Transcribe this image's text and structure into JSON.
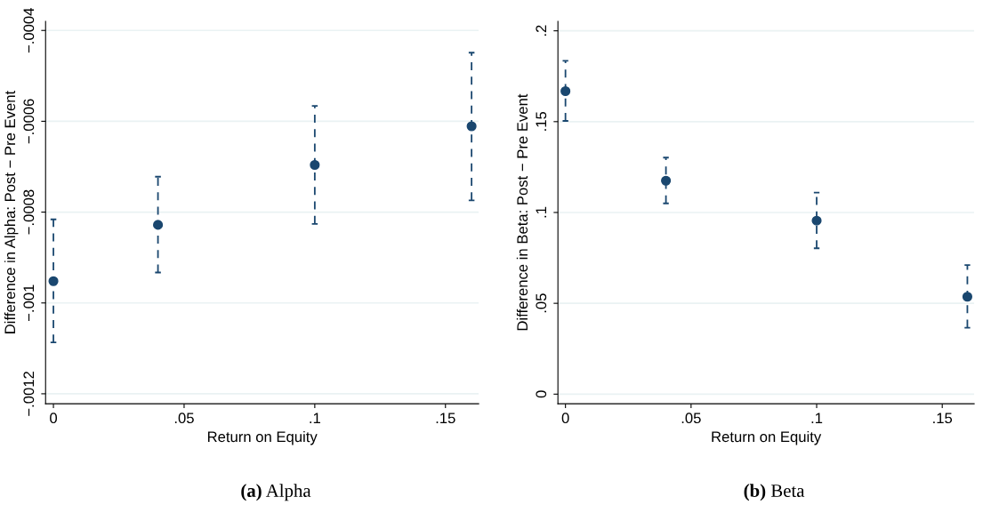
{
  "chart_data": [
    {
      "type": "scatter",
      "title": "(a) Alpha",
      "xlabel": "Return on Equity",
      "ylabel": "Difference in Alpha: Post − Pre Event",
      "x": [
        0,
        0.04,
        0.1,
        0.16
      ],
      "series": [
        {
          "color": "#1a476f",
          "values": [
            -0.000952,
            -0.000828,
            -0.000696,
            -0.000611
          ],
          "errors": [
            [
              -0.001087,
              -0.000816
            ],
            [
              -0.000933,
              -0.000722
            ],
            [
              -0.000826,
              -0.000566
            ],
            [
              -0.000774,
              -0.000449
            ]
          ]
        }
      ],
      "xlim": [
        -0.003,
        0.1627
      ],
      "xticks": [
        {
          "value": 0,
          "label": "0"
        },
        {
          "value": 0.05,
          "label": ".05"
        },
        {
          "value": 0.1,
          "label": ".1"
        },
        {
          "value": 0.15,
          "label": ".15"
        }
      ],
      "ylim": [
        -0.001222,
        -0.00038
      ],
      "yticks": [
        {
          "value": -0.0012,
          "label": "−.0012"
        },
        {
          "value": -0.001,
          "label": "−.001"
        },
        {
          "value": -0.0008,
          "label": "−.0008"
        },
        {
          "value": -0.0006,
          "label": "−.0006"
        },
        {
          "value": -0.0004,
          "label": "−.0004"
        }
      ],
      "grid": "y",
      "marker": "circle",
      "line_style": "dashed"
    },
    {
      "type": "scatter",
      "title": "(b) Beta",
      "xlabel": "Return on Equity",
      "ylabel": "Difference in Beta: Post − Pre Event",
      "x": [
        0,
        0.04,
        0.1,
        0.16
      ],
      "series": [
        {
          "color": "#1a476f",
          "values": [
            0.1668,
            0.1175,
            0.0955,
            0.0536
          ],
          "errors": [
            [
              0.1504,
              0.1835
            ],
            [
              0.105,
              0.1302
            ],
            [
              0.0803,
              0.1109
            ],
            [
              0.0366,
              0.0711
            ]
          ]
        }
      ],
      "xlim": [
        -0.003,
        0.1627
      ],
      "xticks": [
        {
          "value": 0,
          "label": "0"
        },
        {
          "value": 0.05,
          "label": ".05"
        },
        {
          "value": 0.1,
          "label": ".1"
        },
        {
          "value": 0.15,
          "label": ".15"
        }
      ],
      "ylim": [
        -0.0053,
        0.2052
      ],
      "yticks": [
        {
          "value": 0,
          "label": "0"
        },
        {
          "value": 0.05,
          "label": ".05"
        },
        {
          "value": 0.1,
          "label": ".1"
        },
        {
          "value": 0.15,
          "label": ".15"
        },
        {
          "value": 0.2,
          "label": ".2"
        }
      ],
      "grid": "y",
      "marker": "circle",
      "line_style": "dashed"
    }
  ]
}
